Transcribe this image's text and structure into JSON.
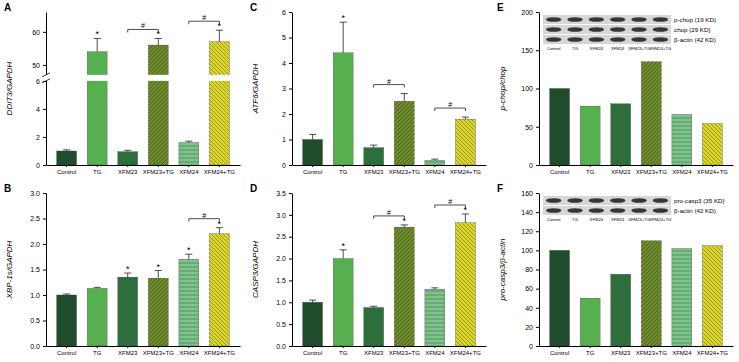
{
  "chart_data": [
    {
      "type": "bar",
      "title": "A",
      "y_label": "DDIT3/GAPDH",
      "categories": [
        "Control",
        "TG",
        "XFM23",
        "XFM23+TG",
        "XFM24",
        "XFM24+TG"
      ],
      "values": [
        1.0,
        54,
        0.95,
        56,
        1.6,
        57
      ],
      "errors": [
        0.08,
        4,
        0.1,
        2,
        0.1,
        3.5
      ],
      "colors": [
        "#1f4d2b",
        "#56b050",
        "#2d6e3c",
        "#6e8c2c",
        "#7cc48a",
        "#d9d52a"
      ],
      "ylim": [
        0,
        66
      ],
      "axis_break": [
        6,
        47
      ],
      "yticks": [
        0,
        2,
        4,
        6,
        50,
        60
      ],
      "annotations": [
        {
          "text": "*",
          "category": 1
        },
        {
          "text": "*",
          "category": 3
        },
        {
          "text": "*",
          "category": 5
        }
      ],
      "brackets": [
        {
          "text": "#",
          "from": 2,
          "to": 3
        },
        {
          "text": "#",
          "from": 4,
          "to": 5
        }
      ]
    },
    {
      "type": "bar",
      "title": "B",
      "y_label": "XBP-1s/GAPDH",
      "categories": [
        "Control",
        "TG",
        "XFM23",
        "XFM23+TG",
        "XFM24",
        "XFM24+TG"
      ],
      "values": [
        1.0,
        1.13,
        1.35,
        1.33,
        1.7,
        2.2
      ],
      "errors": [
        0.02,
        0.02,
        0.08,
        0.15,
        0.1,
        0.12
      ],
      "colors": [
        "#1f4d2b",
        "#56b050",
        "#2d6e3c",
        "#6e8c2c",
        "#7cc48a",
        "#d9d52a"
      ],
      "ylim": [
        0,
        3
      ],
      "yticks": [
        {
          "value": 0,
          "label": "0.0"
        },
        0.5,
        {
          "value": 1,
          "label": "1.0"
        },
        1.5,
        {
          "value": 2,
          "label": "2.0"
        },
        2.5,
        {
          "value": 3,
          "label": "3.0"
        }
      ],
      "annotations": [
        {
          "text": "*",
          "category": 2
        },
        {
          "text": "*",
          "category": 3
        },
        {
          "text": "*",
          "category": 4
        },
        {
          "text": "*",
          "category": 5
        }
      ],
      "brackets": [
        {
          "text": "#",
          "from": 4,
          "to": 5
        }
      ]
    },
    {
      "type": "bar",
      "title": "C",
      "y_label": "ATF6/GAPDH",
      "categories": [
        "Control",
        "TG",
        "XFM23",
        "XFM23+TG",
        "XFM24",
        "XFM24+TG"
      ],
      "values": [
        1.0,
        4.4,
        0.68,
        2.5,
        0.18,
        1.8
      ],
      "errors": [
        0.2,
        1.2,
        0.1,
        0.3,
        0.05,
        0.08
      ],
      "colors": [
        "#1f4d2b",
        "#56b050",
        "#2d6e3c",
        "#6e8c2c",
        "#7cc48a",
        "#d9d52a"
      ],
      "ylim": [
        0,
        6
      ],
      "yticks": [
        0,
        1,
        2,
        3,
        4,
        5,
        6
      ],
      "annotations": [
        {
          "text": "*",
          "category": 1
        }
      ],
      "brackets": [
        {
          "text": "#",
          "from": 2,
          "to": 3
        },
        {
          "text": "#",
          "from": 4,
          "to": 5
        }
      ]
    },
    {
      "type": "bar",
      "title": "D",
      "y_label": "CASP3/GAPDH",
      "categories": [
        "Control",
        "TG",
        "XFM23",
        "XFM23+TG",
        "XFM24",
        "XFM24+TG"
      ],
      "values": [
        1.0,
        2.0,
        0.88,
        2.72,
        1.3,
        2.82
      ],
      "errors": [
        0.05,
        0.2,
        0.03,
        0.05,
        0.03,
        0.2
      ],
      "colors": [
        "#1f4d2b",
        "#56b050",
        "#2d6e3c",
        "#6e8c2c",
        "#7cc48a",
        "#d9d52a"
      ],
      "ylim": [
        0,
        3.5
      ],
      "yticks": [
        {
          "value": 0,
          "label": "0.0"
        },
        0.5,
        {
          "value": 1,
          "label": "1.0"
        },
        1.5,
        {
          "value": 2,
          "label": "2.0"
        },
        2.5,
        {
          "value": 3,
          "label": "3.0"
        },
        3.5
      ],
      "annotations": [
        {
          "text": "*",
          "category": 1
        },
        {
          "text": "*",
          "category": 3
        },
        {
          "text": "*",
          "category": 5
        }
      ],
      "brackets": [
        {
          "text": "#",
          "from": 2,
          "to": 3
        },
        {
          "text": "#",
          "from": 4,
          "to": 5
        }
      ]
    },
    {
      "type": "bar",
      "title": "E",
      "y_label": "p-chop/chop",
      "categories": [
        "Control",
        "TG",
        "XFM23",
        "XFM23+TG",
        "XFM24",
        "XFM24+TG"
      ],
      "values": [
        100,
        77,
        80,
        135,
        66,
        54
      ],
      "colors": [
        "#1f4d2b",
        "#56b050",
        "#2d6e3c",
        "#6e8c2c",
        "#7cc48a",
        "#d9d52a"
      ],
      "ylim": [
        0,
        200
      ],
      "yticks": [
        0,
        50,
        100,
        150,
        200
      ],
      "blot": {
        "bands": [
          "p-chop (19 KD)",
          "chop (29 KD)",
          "β-actin (42 KD)"
        ],
        "lanes": [
          "Control",
          "TG",
          "XFM24",
          "XFM24",
          "XFM23+TG",
          "XFM24+TG"
        ]
      }
    },
    {
      "type": "bar",
      "title": "F",
      "y_label": "pro-casp3/β-actin",
      "categories": [
        "Control",
        "TG",
        "XFM23",
        "XFM23+TG",
        "XFM24",
        "XFM24+TG"
      ],
      "values": [
        100,
        50,
        75,
        110,
        102,
        105
      ],
      "colors": [
        "#1f4d2b",
        "#56b050",
        "#2d6e3c",
        "#6e8c2c",
        "#7cc48a",
        "#d9d52a"
      ],
      "ylim": [
        0,
        160
      ],
      "yticks": [
        0,
        20,
        40,
        60,
        80,
        100,
        120,
        140,
        160
      ],
      "blot": {
        "bands": [
          "pro-casp3 (35 KD)",
          "β-actin (42 KD)"
        ],
        "lanes": [
          "Control",
          "TG",
          "XFM24",
          "XFM24",
          "XFM23+TG",
          "XFM24+TG"
        ]
      }
    }
  ]
}
